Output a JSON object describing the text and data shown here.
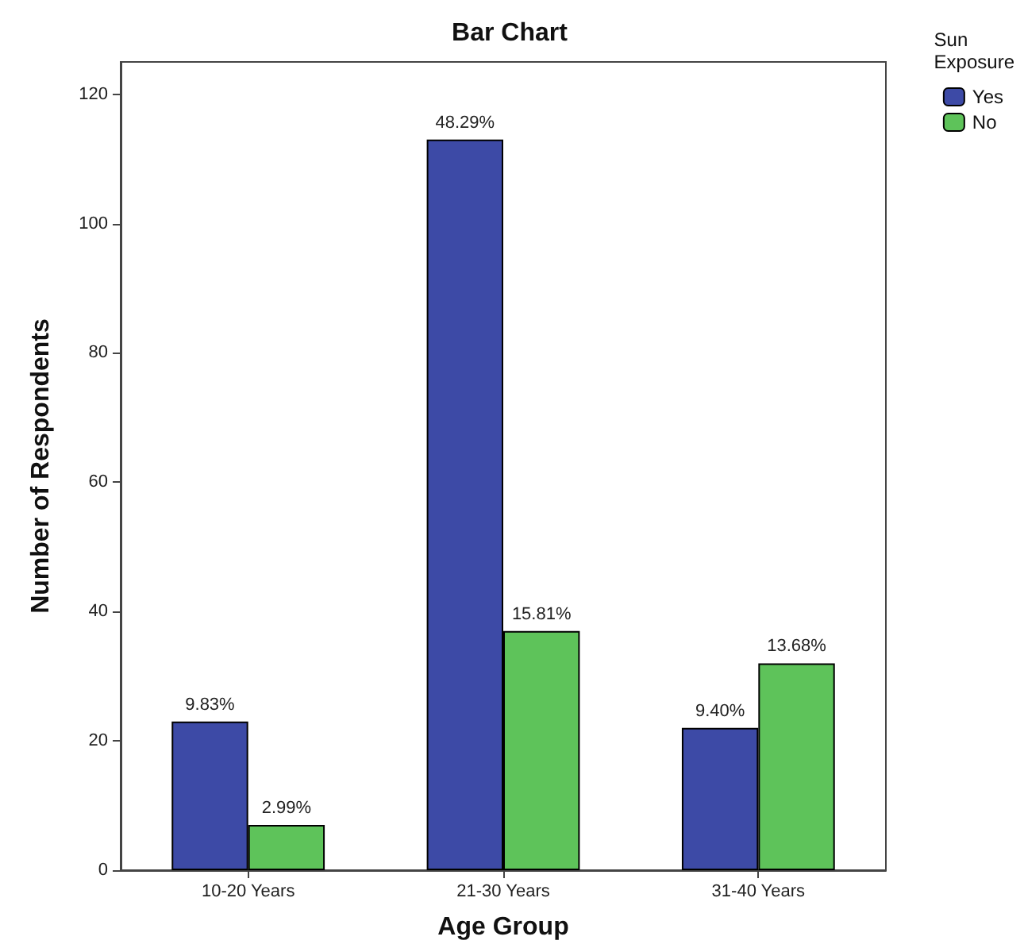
{
  "chart_data": {
    "type": "bar",
    "title": "Bar Chart",
    "xlabel": "Age Group",
    "ylabel": "Number of Respondents",
    "legend_title": "Sun Exposure",
    "categories": [
      "10-20 Years",
      "21-30 Years",
      "31-40 Years"
    ],
    "series": [
      {
        "name": "Yes",
        "color": "#3d4aa6",
        "values": [
          23,
          113,
          22
        ]
      },
      {
        "name": "No",
        "color": "#5ec35a",
        "values": [
          7,
          37,
          32
        ]
      }
    ],
    "annotations": [
      {
        "text": "9.83%",
        "x": "10-20 Years",
        "y": 23
      },
      {
        "text": "48.29%",
        "x": "21-30 Years",
        "y": 113
      },
      {
        "text": "9.40%",
        "x": "31-40 Years",
        "y": 22
      },
      {
        "text": "2.99%",
        "x": "10-20 Years",
        "y": 7
      },
      {
        "text": "15.81%",
        "x": "21-30 Years",
        "y": 37
      },
      {
        "text": "13.68%",
        "x": "31-40 Years",
        "y": 32
      }
    ],
    "ylim": [
      0,
      125
    ],
    "yticks": [
      0,
      20,
      40,
      60,
      80,
      100,
      120
    ],
    "grid": false,
    "legend": "top right"
  }
}
